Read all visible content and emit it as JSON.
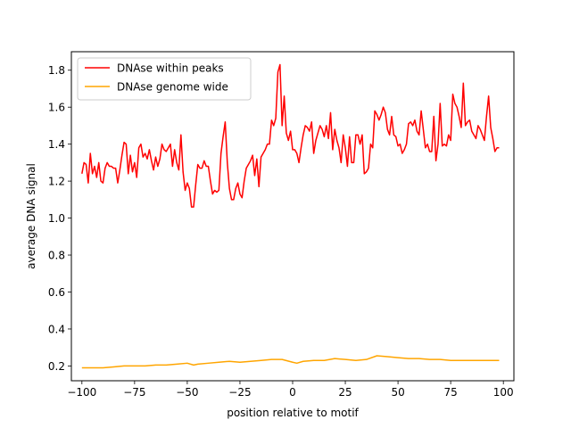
{
  "chart_data": {
    "type": "line",
    "title": "",
    "xlabel": "position relative to motif",
    "ylabel": "average DNA signal",
    "xlim": [
      -105,
      105
    ],
    "ylim": [
      0.12,
      1.9
    ],
    "xticks": [
      -100,
      -75,
      -50,
      -25,
      0,
      25,
      50,
      75,
      100
    ],
    "xtick_labels": [
      "−100",
      "−75",
      "−50",
      "−25",
      "0",
      "25",
      "50",
      "75",
      "100"
    ],
    "yticks": [
      0.2,
      0.4,
      0.6,
      0.8,
      1.0,
      1.2,
      1.4,
      1.6,
      1.8
    ],
    "ytick_labels": [
      "0.2",
      "0.4",
      "0.6",
      "0.8",
      "1.0",
      "1.2",
      "1.4",
      "1.6",
      "1.8"
    ],
    "grid": false,
    "legend": "top-left",
    "series": [
      {
        "name": "DNAse within peaks",
        "color": "#ff0000",
        "points": [
          [
            -100,
            1.24
          ],
          [
            -99,
            1.3
          ],
          [
            -98,
            1.29
          ],
          [
            -97,
            1.19
          ],
          [
            -96,
            1.35
          ],
          [
            -95,
            1.24
          ],
          [
            -94,
            1.28
          ],
          [
            -93,
            1.22
          ],
          [
            -92,
            1.3
          ],
          [
            -91,
            1.2
          ],
          [
            -90,
            1.19
          ],
          [
            -89,
            1.27
          ],
          [
            -88,
            1.3
          ],
          [
            -87,
            1.28
          ],
          [
            -86,
            1.28
          ],
          [
            -85,
            1.27
          ],
          [
            -84,
            1.27
          ],
          [
            -83,
            1.19
          ],
          [
            -82,
            1.26
          ],
          [
            -81,
            1.34
          ],
          [
            -80,
            1.41
          ],
          [
            -79,
            1.4
          ],
          [
            -78,
            1.24
          ],
          [
            -77,
            1.34
          ],
          [
            -76,
            1.25
          ],
          [
            -75,
            1.3
          ],
          [
            -74,
            1.22
          ],
          [
            -73,
            1.38
          ],
          [
            -72,
            1.4
          ],
          [
            -71,
            1.33
          ],
          [
            -70,
            1.35
          ],
          [
            -69,
            1.32
          ],
          [
            -68,
            1.37
          ],
          [
            -67,
            1.31
          ],
          [
            -66,
            1.26
          ],
          [
            -65,
            1.33
          ],
          [
            -64,
            1.28
          ],
          [
            -63,
            1.32
          ],
          [
            -62,
            1.4
          ],
          [
            -61,
            1.37
          ],
          [
            -60,
            1.36
          ],
          [
            -59,
            1.38
          ],
          [
            -58,
            1.4
          ],
          [
            -57,
            1.28
          ],
          [
            -56,
            1.37
          ],
          [
            -55,
            1.3
          ],
          [
            -54,
            1.26
          ],
          [
            -53,
            1.45
          ],
          [
            -52,
            1.25
          ],
          [
            -51,
            1.15
          ],
          [
            -50,
            1.19
          ],
          [
            -49,
            1.16
          ],
          [
            -48,
            1.06
          ],
          [
            -47,
            1.06
          ],
          [
            -46,
            1.18
          ],
          [
            -45,
            1.29
          ],
          [
            -44,
            1.27
          ],
          [
            -43,
            1.27
          ],
          [
            -42,
            1.31
          ],
          [
            -41,
            1.28
          ],
          [
            -40,
            1.28
          ],
          [
            -39,
            1.2
          ],
          [
            -38,
            1.13
          ],
          [
            -37,
            1.15
          ],
          [
            -36,
            1.14
          ],
          [
            -35,
            1.15
          ],
          [
            -34,
            1.35
          ],
          [
            -33,
            1.44
          ],
          [
            -32,
            1.52
          ],
          [
            -31,
            1.3
          ],
          [
            -30,
            1.16
          ],
          [
            -29,
            1.1
          ],
          [
            -28,
            1.1
          ],
          [
            -27,
            1.16
          ],
          [
            -26,
            1.19
          ],
          [
            -25,
            1.13
          ],
          [
            -24,
            1.11
          ],
          [
            -23,
            1.2
          ],
          [
            -22,
            1.27
          ],
          [
            -21,
            1.29
          ],
          [
            -20,
            1.31
          ],
          [
            -19,
            1.34
          ],
          [
            -18,
            1.23
          ],
          [
            -17,
            1.32
          ],
          [
            -16,
            1.17
          ],
          [
            -15,
            1.33
          ],
          [
            -14,
            1.35
          ],
          [
            -13,
            1.37
          ],
          [
            -12,
            1.4
          ],
          [
            -11,
            1.4
          ],
          [
            -10,
            1.53
          ],
          [
            -9,
            1.5
          ],
          [
            -8,
            1.54
          ],
          [
            -7,
            1.79
          ],
          [
            -6,
            1.83
          ],
          [
            -5,
            1.5
          ],
          [
            -4,
            1.66
          ],
          [
            -3,
            1.46
          ],
          [
            -2,
            1.42
          ],
          [
            -1,
            1.47
          ],
          [
            0,
            1.37
          ],
          [
            1,
            1.37
          ],
          [
            2,
            1.35
          ],
          [
            3,
            1.3
          ],
          [
            4,
            1.38
          ],
          [
            5,
            1.45
          ],
          [
            6,
            1.5
          ],
          [
            7,
            1.49
          ],
          [
            8,
            1.47
          ],
          [
            9,
            1.52
          ],
          [
            10,
            1.35
          ],
          [
            11,
            1.42
          ],
          [
            12,
            1.46
          ],
          [
            13,
            1.5
          ],
          [
            14,
            1.48
          ],
          [
            15,
            1.44
          ],
          [
            16,
            1.5
          ],
          [
            17,
            1.43
          ],
          [
            18,
            1.57
          ],
          [
            19,
            1.37
          ],
          [
            20,
            1.48
          ],
          [
            21,
            1.42
          ],
          [
            22,
            1.38
          ],
          [
            23,
            1.3
          ],
          [
            24,
            1.45
          ],
          [
            25,
            1.38
          ],
          [
            26,
            1.28
          ],
          [
            27,
            1.44
          ],
          [
            28,
            1.3
          ],
          [
            29,
            1.3
          ],
          [
            30,
            1.45
          ],
          [
            31,
            1.45
          ],
          [
            32,
            1.4
          ],
          [
            33,
            1.45
          ],
          [
            34,
            1.24
          ],
          [
            35,
            1.25
          ],
          [
            36,
            1.27
          ],
          [
            37,
            1.4
          ],
          [
            38,
            1.38
          ],
          [
            39,
            1.58
          ],
          [
            40,
            1.56
          ],
          [
            41,
            1.53
          ],
          [
            42,
            1.56
          ],
          [
            43,
            1.6
          ],
          [
            44,
            1.57
          ],
          [
            45,
            1.48
          ],
          [
            46,
            1.45
          ],
          [
            47,
            1.55
          ],
          [
            48,
            1.45
          ],
          [
            49,
            1.44
          ],
          [
            50,
            1.39
          ],
          [
            51,
            1.4
          ],
          [
            52,
            1.35
          ],
          [
            53,
            1.37
          ],
          [
            54,
            1.4
          ],
          [
            55,
            1.51
          ],
          [
            56,
            1.52
          ],
          [
            57,
            1.5
          ],
          [
            58,
            1.53
          ],
          [
            59,
            1.47
          ],
          [
            60,
            1.45
          ],
          [
            61,
            1.58
          ],
          [
            62,
            1.48
          ],
          [
            63,
            1.38
          ],
          [
            64,
            1.4
          ],
          [
            65,
            1.36
          ],
          [
            66,
            1.36
          ],
          [
            67,
            1.55
          ],
          [
            68,
            1.31
          ],
          [
            69,
            1.4
          ],
          [
            70,
            1.62
          ],
          [
            71,
            1.39
          ],
          [
            72,
            1.4
          ],
          [
            73,
            1.39
          ],
          [
            74,
            1.45
          ],
          [
            75,
            1.42
          ],
          [
            76,
            1.67
          ],
          [
            77,
            1.62
          ],
          [
            78,
            1.6
          ],
          [
            79,
            1.55
          ],
          [
            80,
            1.49
          ],
          [
            81,
            1.73
          ],
          [
            82,
            1.5
          ],
          [
            83,
            1.52
          ],
          [
            84,
            1.53
          ],
          [
            85,
            1.47
          ],
          [
            86,
            1.45
          ],
          [
            87,
            1.43
          ],
          [
            88,
            1.5
          ],
          [
            89,
            1.48
          ],
          [
            90,
            1.45
          ],
          [
            91,
            1.42
          ],
          [
            92,
            1.55
          ],
          [
            93,
            1.66
          ],
          [
            94,
            1.49
          ],
          [
            95,
            1.43
          ],
          [
            96,
            1.36
          ],
          [
            97,
            1.38
          ],
          [
            98,
            1.38
          ]
        ]
      },
      {
        "name": "DNAse genome wide",
        "color": "#ffa500",
        "points": [
          [
            -100,
            0.19
          ],
          [
            -95,
            0.19
          ],
          [
            -90,
            0.19
          ],
          [
            -85,
            0.195
          ],
          [
            -80,
            0.2
          ],
          [
            -75,
            0.2
          ],
          [
            -70,
            0.2
          ],
          [
            -65,
            0.205
          ],
          [
            -60,
            0.205
          ],
          [
            -55,
            0.21
          ],
          [
            -50,
            0.215
          ],
          [
            -47,
            0.205
          ],
          [
            -45,
            0.21
          ],
          [
            -40,
            0.215
          ],
          [
            -35,
            0.22
          ],
          [
            -30,
            0.225
          ],
          [
            -25,
            0.22
          ],
          [
            -20,
            0.225
          ],
          [
            -15,
            0.23
          ],
          [
            -10,
            0.235
          ],
          [
            -5,
            0.235
          ],
          [
            0,
            0.22
          ],
          [
            2,
            0.215
          ],
          [
            5,
            0.225
          ],
          [
            10,
            0.23
          ],
          [
            15,
            0.23
          ],
          [
            20,
            0.24
          ],
          [
            25,
            0.235
          ],
          [
            30,
            0.23
          ],
          [
            35,
            0.235
          ],
          [
            40,
            0.255
          ],
          [
            45,
            0.25
          ],
          [
            50,
            0.245
          ],
          [
            55,
            0.24
          ],
          [
            60,
            0.24
          ],
          [
            65,
            0.235
          ],
          [
            70,
            0.235
          ],
          [
            75,
            0.23
          ],
          [
            80,
            0.23
          ],
          [
            85,
            0.23
          ],
          [
            90,
            0.23
          ],
          [
            95,
            0.23
          ],
          [
            98,
            0.23
          ]
        ]
      }
    ]
  }
}
